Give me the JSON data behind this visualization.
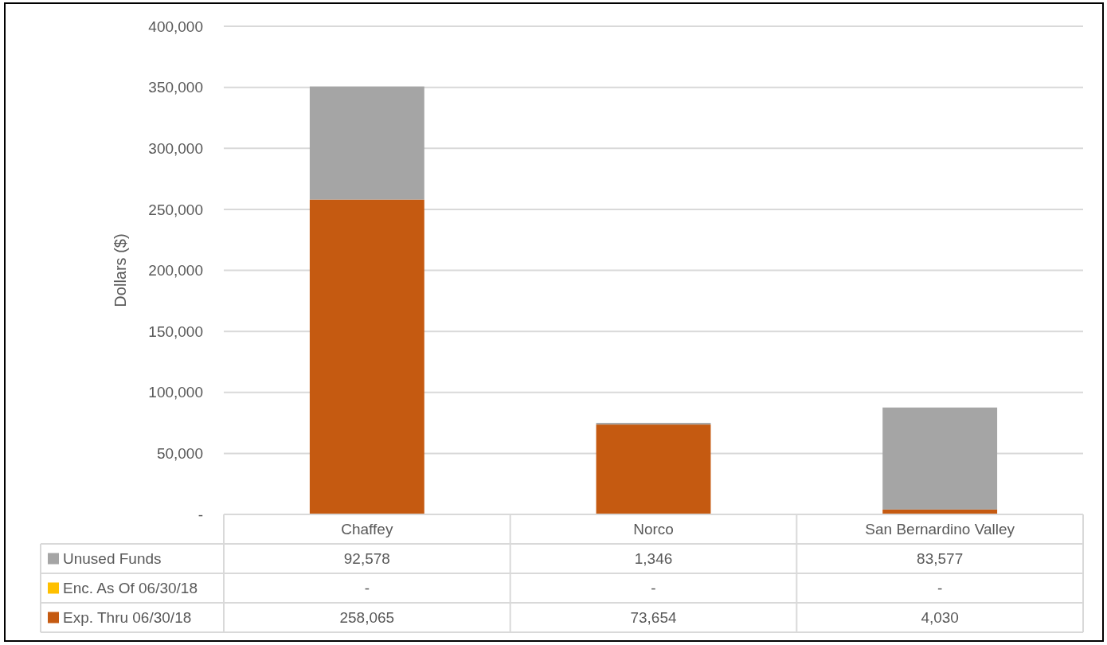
{
  "chart_data": {
    "type": "bar",
    "stacked": true,
    "ylabel": "Dollars ($)",
    "categories": [
      "Chaffey",
      "Norco",
      "San Bernardino Valley"
    ],
    "series": [
      {
        "name": "Exp. Thru 06/30/18",
        "color": "#c55a11",
        "values": [
          258065,
          73654,
          4030
        ],
        "value_labels": [
          "258,065",
          "73,654",
          "4,030"
        ]
      },
      {
        "name": "Enc. As Of 06/30/18",
        "color": "#ffc000",
        "values": [
          0,
          0,
          0
        ],
        "value_labels": [
          "-",
          "-",
          "-"
        ]
      },
      {
        "name": "Unused Funds",
        "color": "#a5a5a5",
        "values": [
          92578,
          1346,
          83577
        ],
        "value_labels": [
          "92,578",
          "1,346",
          "83,577"
        ]
      }
    ],
    "ylim": [
      0,
      400000
    ],
    "yticks": [
      {
        "value": 0,
        "label": "-"
      },
      {
        "value": 50000,
        "label": "50,000"
      },
      {
        "value": 100000,
        "label": "100,000"
      },
      {
        "value": 150000,
        "label": "150,000"
      },
      {
        "value": 200000,
        "label": "200,000"
      },
      {
        "value": 250000,
        "label": "250,000"
      },
      {
        "value": 300000,
        "label": "300,000"
      },
      {
        "value": 350000,
        "label": "350,000"
      },
      {
        "value": 400000,
        "label": "400,000"
      }
    ],
    "grid": "y",
    "legend": "bottom"
  }
}
